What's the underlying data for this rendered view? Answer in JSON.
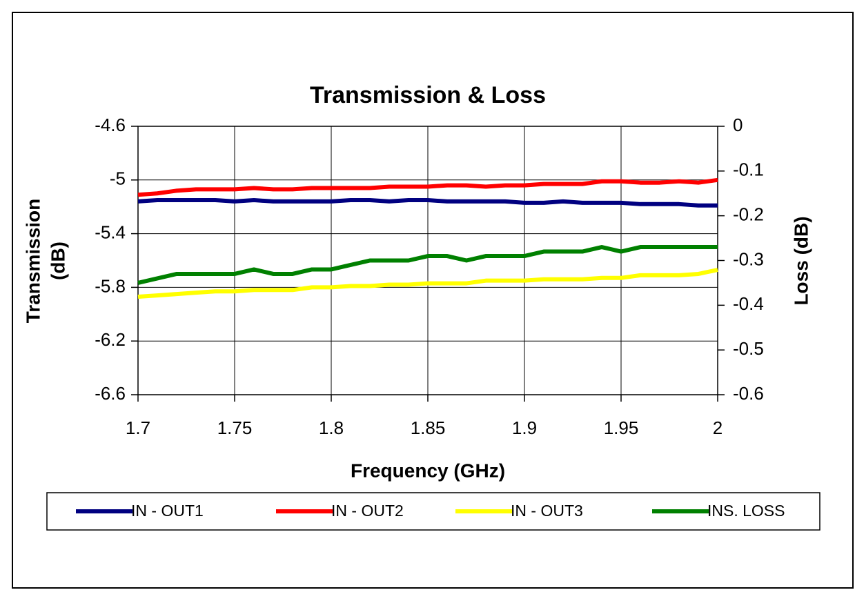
{
  "chart_data": {
    "type": "line",
    "title": "Transmission & Loss",
    "x_label": "Frequency (GHz)",
    "y_label": [
      "Transmission",
      "(dB)"
    ],
    "y2_label": "Loss (dB)",
    "x": [
      1.7,
      1.71,
      1.72,
      1.73,
      1.74,
      1.75,
      1.76,
      1.77,
      1.78,
      1.79,
      1.8,
      1.81,
      1.82,
      1.83,
      1.84,
      1.85,
      1.86,
      1.87,
      1.88,
      1.89,
      1.9,
      1.91,
      1.92,
      1.93,
      1.94,
      1.95,
      1.96,
      1.97,
      1.98,
      1.99,
      2.0
    ],
    "xlim": [
      1.7,
      2
    ],
    "xticks": [
      1.7,
      1.75,
      1.8,
      1.85,
      1.9,
      1.95,
      2
    ],
    "ylim": [
      -6.6,
      -4.6
    ],
    "yticks": [
      -6.6,
      -6.2,
      -5.8,
      -5.4,
      -5,
      -4.6
    ],
    "y2lim": [
      -0.6,
      0
    ],
    "y2ticks": [
      -0.6,
      -0.5,
      -0.4,
      -0.3,
      -0.2,
      -0.1,
      0
    ],
    "grid": true,
    "legend": "bottom",
    "series": [
      {
        "name": "IN - OUT1",
        "color": "#000080",
        "values": [
          -5.16,
          -5.15,
          -5.15,
          -5.15,
          -5.15,
          -5.16,
          -5.15,
          -5.16,
          -5.16,
          -5.16,
          -5.16,
          -5.15,
          -5.15,
          -5.16,
          -5.15,
          -5.15,
          -5.16,
          -5.16,
          -5.16,
          -5.16,
          -5.17,
          -5.17,
          -5.16,
          -5.17,
          -5.17,
          -5.17,
          -5.18,
          -5.18,
          -5.18,
          -5.19,
          -5.19
        ]
      },
      {
        "name": "IN - OUT2",
        "color": "#ff0000",
        "values": [
          -5.11,
          -5.1,
          -5.08,
          -5.07,
          -5.07,
          -5.07,
          -5.06,
          -5.07,
          -5.07,
          -5.06,
          -5.06,
          -5.06,
          -5.06,
          -5.05,
          -5.05,
          -5.05,
          -5.04,
          -5.04,
          -5.05,
          -5.04,
          -5.04,
          -5.03,
          -5.03,
          -5.03,
          -5.01,
          -5.01,
          -5.02,
          -5.02,
          -5.01,
          -5.02,
          -5.0
        ]
      },
      {
        "name": "IN - OUT3",
        "color": "#ffff00",
        "values": [
          -5.87,
          -5.86,
          -5.85,
          -5.84,
          -5.83,
          -5.83,
          -5.82,
          -5.82,
          -5.82,
          -5.8,
          -5.8,
          -5.79,
          -5.79,
          -5.78,
          -5.78,
          -5.77,
          -5.77,
          -5.77,
          -5.75,
          -5.75,
          -5.75,
          -5.74,
          -5.74,
          -5.74,
          -5.73,
          -5.73,
          -5.71,
          -5.71,
          -5.71,
          -5.7,
          -5.67
        ]
      },
      {
        "name": "INS. LOSS",
        "color": "#008000",
        "axis": "y2",
        "values": [
          -0.35,
          -0.34,
          -0.33,
          -0.33,
          -0.33,
          -0.33,
          -0.32,
          -0.33,
          -0.33,
          -0.32,
          -0.32,
          -0.31,
          -0.3,
          -0.3,
          -0.3,
          -0.29,
          -0.29,
          -0.3,
          -0.29,
          -0.29,
          -0.29,
          -0.28,
          -0.28,
          -0.28,
          -0.27,
          -0.28,
          -0.27,
          -0.27,
          -0.27,
          -0.27,
          -0.27
        ]
      }
    ]
  }
}
